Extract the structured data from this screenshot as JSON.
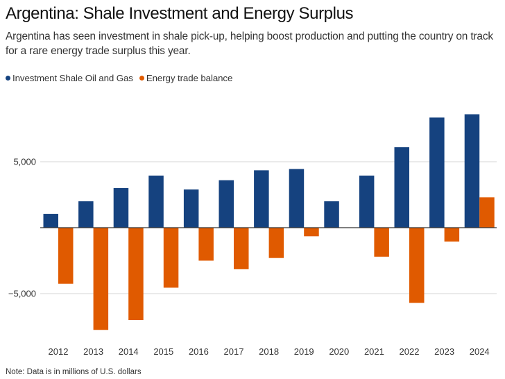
{
  "header": {
    "title": "Argentina: Shale Investment and Energy Surplus",
    "subtitle": "Argentina has seen investment in shale pick-up, helping boost production and putting the country on track for a rare energy trade surplus this year."
  },
  "note": "Note: Data is in millions of U.S. dollars",
  "colors": {
    "investment": "#15427f",
    "trade_balance": "#e05a00",
    "gridline": "#dddddd",
    "zero_line": "#333333"
  },
  "chart_data": {
    "type": "bar",
    "title": "Argentina: Shale Investment and Energy Surplus",
    "xlabel": "",
    "ylabel": "",
    "categories": [
      "2012",
      "2013",
      "2014",
      "2015",
      "2016",
      "2017",
      "2018",
      "2019",
      "2020",
      "2021",
      "2022",
      "2023",
      "2024"
    ],
    "series": [
      {
        "name": "Investment Shale Oil and Gas",
        "color": "#15427f",
        "values": [
          1050,
          2000,
          3000,
          3950,
          2900,
          3600,
          4350,
          4450,
          2000,
          3950,
          6100,
          8350,
          8600
        ]
      },
      {
        "name": "Energy trade balance",
        "color": "#e05a00",
        "values": [
          -4250,
          -7750,
          -7000,
          -4550,
          -2500,
          -3150,
          -2300,
          -650,
          0,
          -2200,
          -5700,
          -1050,
          2300
        ]
      }
    ],
    "yticks": [
      -5000,
      5000
    ],
    "ytick_labels": [
      "−5,000",
      "5,000"
    ],
    "ylim": [
      -8400,
      10000
    ],
    "grid": true,
    "legend": "top-left"
  }
}
